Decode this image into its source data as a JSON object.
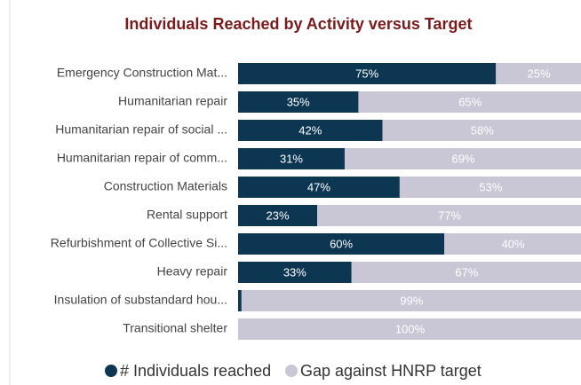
{
  "chart_data": {
    "type": "stacked-bar",
    "orientation": "horizontal",
    "title": "Individuals Reached by Activity versus Target",
    "categories": [
      "Emergency Construction Mat...",
      "Humanitarian repair",
      "Humanitarian repair of social ...",
      "Humanitarian repair of comm...",
      "Construction Materials",
      "Rental support",
      "Refurbishment of Collective Si...",
      "Heavy repair",
      "Insulation of substandard hou...",
      "Transitional shelter"
    ],
    "series": [
      {
        "name": "# Individuals reached",
        "color": "#0d3652",
        "values": [
          75,
          35,
          42,
          31,
          47,
          23,
          60,
          33,
          1,
          0
        ],
        "value_labels": [
          "75%",
          "35%",
          "42%",
          "31%",
          "47%",
          "23%",
          "60%",
          "33%",
          null,
          null
        ]
      },
      {
        "name": "Gap against HNRP target",
        "color": "#c9c7d5",
        "values": [
          25,
          65,
          58,
          69,
          53,
          77,
          40,
          67,
          99,
          100
        ],
        "value_labels": [
          "25%",
          "65%",
          "58%",
          "69%",
          "53%",
          "77%",
          "40%",
          "67%",
          "99%",
          "100%"
        ]
      }
    ],
    "xlim": [
      0,
      100
    ],
    "legend": "bottom"
  }
}
